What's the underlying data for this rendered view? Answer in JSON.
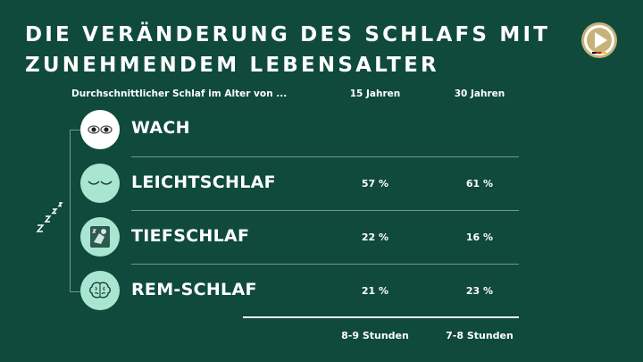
{
  "title": {
    "line1": "DIE VERÄNDERUNG DES SCHLAFS MIT",
    "line2": "ZUNEHMENDEM LEBENSALTER"
  },
  "header": {
    "label": "Durchschnittlicher Schlaf im Alter von ...",
    "col1": "15 Jahren",
    "col2": "30 Jahren"
  },
  "rows": [
    {
      "label": "WACH",
      "icon": "eyes-open-icon",
      "col1": "",
      "col2": "",
      "icon_bg": "#ffffff"
    },
    {
      "label": "LEICHTSCHLAF",
      "icon": "eyes-closed-icon",
      "col1": "57 %",
      "col2": "61 %",
      "icon_bg": "#a8e6d2"
    },
    {
      "label": "TIEFSCHLAF",
      "icon": "sleeping-person-icon",
      "col1": "22 %",
      "col2": "16 %",
      "icon_bg": "#a8e6d2"
    },
    {
      "label": "REM-SCHLAF",
      "icon": "brain-icon",
      "col1": "21 %",
      "col2": "23 %",
      "icon_bg": "#a8e6d2"
    }
  ],
  "footer": {
    "col1": "8-9 Stunden",
    "col2": "7-8 Stunden"
  },
  "colors": {
    "background": "#0f4a3c",
    "accent": "#a8e6d2",
    "divider": "#6f9a8d",
    "text": "#ffffff"
  }
}
